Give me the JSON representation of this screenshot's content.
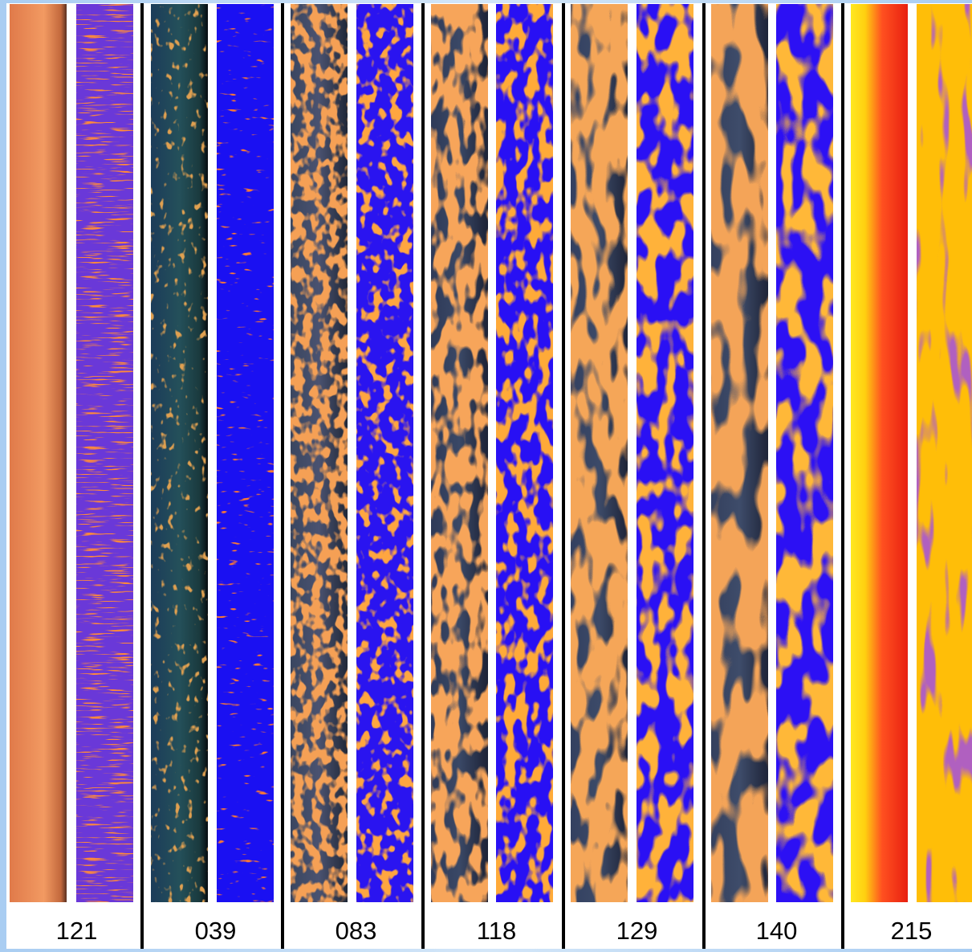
{
  "panels": [
    {
      "label": "121"
    },
    {
      "label": "039"
    },
    {
      "label": "083"
    },
    {
      "label": "118"
    },
    {
      "label": "129"
    },
    {
      "label": "140"
    },
    {
      "label": "215"
    }
  ]
}
